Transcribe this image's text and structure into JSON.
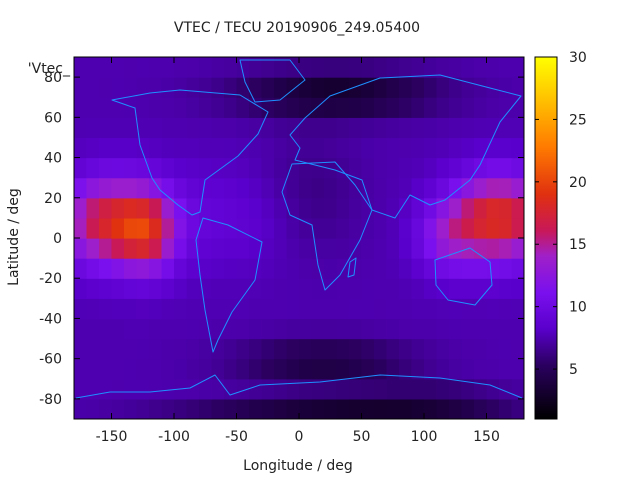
{
  "chart_data": {
    "type": "heatmap",
    "title": "VTEC / TECU 20190906_249.05400",
    "xlabel": "Longitude / deg",
    "ylabel": "Latitude / deg",
    "key_label": "'Vtec_",
    "xlim": [
      -180,
      180
    ],
    "ylim": [
      -90,
      90
    ],
    "x_ticks": [
      -150,
      -100,
      -50,
      0,
      50,
      100,
      150
    ],
    "y_ticks": [
      -80,
      -60,
      -40,
      -20,
      0,
      20,
      40,
      60,
      80
    ],
    "colorbar": {
      "min": 1,
      "max": 30,
      "ticks": [
        5,
        10,
        15,
        20,
        25,
        30
      ]
    },
    "overlay": "continent outlines",
    "colors": {
      "outline": "#1e90ff",
      "frame": "#000000"
    }
  }
}
